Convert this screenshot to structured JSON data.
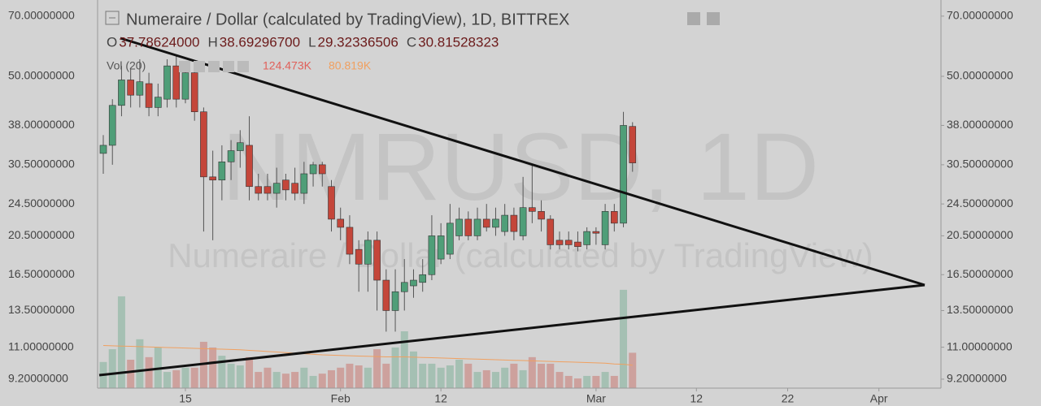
{
  "chart_data": {
    "type": "candlestick",
    "header": {
      "title": "Numeraire / Dollar (calculated by TradingView), 1D, BITTREX",
      "ohlc": [
        {
          "label": "O",
          "value": "37.78624000"
        },
        {
          "label": "H",
          "value": "38.69296700"
        },
        {
          "label": "L",
          "value": "29.32336506"
        },
        {
          "label": "C",
          "value": "30.81528323"
        }
      ],
      "volume_label": "Vol (20)",
      "volume_values": [
        "124.473K",
        "80.819K"
      ]
    },
    "watermark": [
      "NMRUSD, 1D",
      "Numeraire / Dollar (calculated by TradingView)"
    ],
    "categories": [
      null,
      null,
      null,
      null,
      null,
      null,
      null,
      null,
      null,
      "15",
      null,
      null,
      null,
      null,
      null,
      null,
      null,
      null,
      null,
      null,
      null,
      null,
      null,
      null,
      null,
      null,
      "Feb",
      null,
      null,
      null,
      null,
      null,
      null,
      null,
      null,
      null,
      null,
      "12",
      null,
      null,
      null,
      null,
      null,
      null,
      null,
      null,
      null,
      null,
      null,
      null,
      null,
      null,
      null,
      null,
      "Mar",
      null,
      null,
      null,
      null,
      null,
      null,
      null,
      null,
      null,
      null,
      "12",
      null,
      null,
      null,
      null,
      null,
      null,
      null,
      null,
      null,
      "22",
      null,
      null,
      null,
      null,
      null,
      null,
      null,
      null,
      null,
      "Apr",
      null,
      null,
      null
    ],
    "open": [
      32.5,
      34,
      42.5,
      49,
      45,
      48,
      42,
      44,
      53,
      44,
      51,
      41,
      28.5,
      28,
      31,
      33,
      34,
      27,
      27,
      26,
      28,
      27.5,
      26,
      29,
      30.5,
      27,
      22.5,
      21.5,
      19,
      17.5,
      20,
      16,
      13.5,
      15,
      15.5,
      15.8,
      16.5,
      18,
      18.5,
      20.5,
      22.5,
      20.5,
      22.5,
      21.5,
      21,
      23,
      20.5,
      24,
      23.5,
      22.5,
      20,
      20,
      19.8,
      19.5,
      21,
      19.5,
      23.5,
      22,
      37.78624,
      null,
      null,
      null,
      null,
      null,
      null,
      null,
      null,
      null,
      null,
      null,
      null,
      null,
      null,
      null,
      null,
      null,
      null,
      null,
      null,
      null,
      null,
      null,
      null,
      null,
      null,
      null,
      null,
      null,
      null
    ],
    "high": [
      36,
      44,
      53,
      52,
      55,
      51,
      48,
      55,
      56,
      54,
      52,
      42,
      33,
      34,
      35,
      37,
      40,
      29,
      29,
      30,
      29,
      30,
      31,
      31,
      31,
      28,
      24,
      23,
      20,
      21,
      21,
      17,
      17,
      18,
      17,
      18,
      23,
      22,
      24.5,
      24,
      23.5,
      24,
      24.5,
      24,
      24.5,
      24,
      28.5,
      30.5,
      25,
      23,
      21,
      21,
      21,
      21.5,
      21.5,
      24.5,
      24.5,
      41,
      38.692967,
      null,
      null,
      null,
      null,
      null,
      null,
      null,
      null,
      null,
      null,
      null,
      null,
      null,
      null,
      null,
      null,
      null,
      null,
      null,
      null,
      null,
      null,
      null,
      null,
      null,
      null,
      null,
      null,
      null,
      null
    ],
    "low": [
      29,
      30.5,
      40,
      42,
      42,
      40,
      40,
      42,
      42,
      43,
      39,
      21,
      20,
      25,
      28,
      30,
      25,
      25,
      25,
      24,
      25,
      25,
      24.5,
      27,
      27,
      21,
      20,
      17.5,
      15,
      15,
      13.5,
      12,
      12,
      13.5,
      14.5,
      15,
      16,
      17.5,
      18,
      20,
      20,
      20,
      21,
      20.5,
      20.5,
      20,
      20,
      22,
      21,
      19,
      19,
      19,
      18.8,
      19,
      19.5,
      19,
      21,
      21.5,
      29.32336506,
      null,
      null,
      null,
      null,
      null,
      null,
      null,
      null,
      null,
      null,
      null,
      null,
      null,
      null,
      null,
      null,
      null,
      null,
      null,
      null,
      null,
      null,
      null,
      null,
      null,
      null,
      null,
      null,
      null,
      null
    ],
    "close": [
      34,
      42.5,
      49,
      45,
      48.5,
      42,
      44.5,
      53,
      44,
      51,
      41,
      28.5,
      28,
      31,
      33,
      34.5,
      27,
      26,
      26,
      27.5,
      26.5,
      26,
      29,
      30.5,
      29,
      22.5,
      21.5,
      18.5,
      17.5,
      20,
      16,
      13.5,
      15,
      15.8,
      16,
      16.5,
      20.5,
      20.5,
      22,
      22.5,
      20.5,
      22.5,
      21.5,
      22.5,
      23,
      21,
      24,
      23.5,
      22.5,
      19.5,
      19.5,
      19.5,
      19.3,
      21,
      20.8,
      23.5,
      22,
      38,
      30.81528323,
      null,
      null,
      null,
      null,
      null,
      null,
      null,
      null,
      null,
      null,
      null,
      null,
      null,
      null,
      null,
      null,
      null,
      null,
      null,
      null,
      null,
      null,
      null,
      null,
      null,
      null,
      null,
      null,
      null,
      null
    ],
    "volume": [
      92,
      137,
      323,
      100,
      172,
      109,
      143,
      57,
      63,
      72,
      72,
      163,
      143,
      114,
      86,
      80,
      109,
      57,
      72,
      57,
      51,
      57,
      72,
      43,
      51,
      63,
      72,
      86,
      80,
      72,
      137,
      86,
      143,
      200,
      129,
      86,
      86,
      72,
      80,
      100,
      86,
      57,
      63,
      57,
      72,
      86,
      63,
      109,
      86,
      86,
      57,
      43,
      34,
      43,
      43,
      57,
      43,
      346,
      124.473,
      null,
      null,
      null,
      null,
      null,
      null,
      null,
      null,
      null,
      null,
      null,
      null,
      null,
      null,
      null,
      null,
      null,
      null,
      null,
      null,
      null,
      null,
      null,
      null,
      null,
      null,
      null,
      null,
      null,
      null
    ],
    "volume_ma": [
      150,
      149,
      148,
      147,
      146,
      145,
      144,
      143,
      142,
      141,
      140,
      139,
      138,
      137,
      136,
      135,
      133,
      131,
      129,
      127,
      125,
      123,
      121,
      119,
      117,
      116,
      115,
      114,
      113,
      112,
      111,
      110,
      110,
      110,
      109,
      108,
      107,
      106,
      105,
      104,
      103,
      102,
      101,
      100,
      99,
      98,
      97,
      96,
      95,
      94,
      93,
      92,
      91,
      90,
      89,
      88,
      85,
      84,
      80.819,
      null,
      null,
      null,
      null,
      null,
      null,
      null,
      null,
      null,
      null,
      null,
      null,
      null,
      null,
      null,
      null,
      null,
      null,
      null,
      null,
      null,
      null,
      null,
      null,
      null,
      null,
      null,
      null,
      null,
      null
    ],
    "up_color": "#4f9e78",
    "down_color": "#c4463a",
    "ma_color": "#f0a060",
    "log_scale": true,
    "ylim": [
      8.75,
      76.6
    ],
    "yticks": [
      {
        "value": 70,
        "label": "70.00000000"
      },
      {
        "value": 50,
        "label": "50.00000000"
      },
      {
        "value": 38,
        "label": "38.00000000"
      },
      {
        "value": 30.5,
        "label": "30.50000000"
      },
      {
        "value": 24.5,
        "label": "24.50000000"
      },
      {
        "value": 20.5,
        "label": "20.50000000"
      },
      {
        "value": 16.5,
        "label": "16.50000000"
      },
      {
        "value": 13.5,
        "label": "13.50000000"
      },
      {
        "value": 11,
        "label": "11.00000000"
      },
      {
        "value": 9.2,
        "label": "9.20000000"
      }
    ]
  }
}
